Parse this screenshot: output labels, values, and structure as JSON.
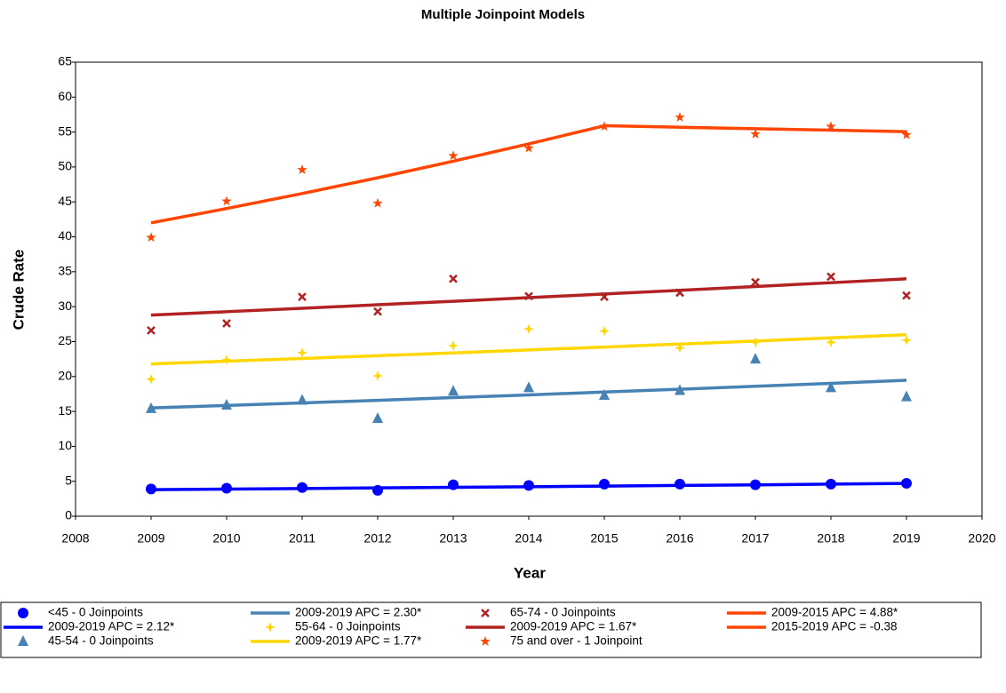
{
  "chart_data": {
    "type": "line",
    "title": "Multiple Joinpoint Models",
    "x_label": "Year",
    "y_label": "Crude Rate",
    "x": [
      2009,
      2010,
      2011,
      2012,
      2013,
      2014,
      2015,
      2016,
      2017,
      2018,
      2019
    ],
    "xlim": [
      2008,
      2020
    ],
    "xticks": [
      2008,
      2009,
      2010,
      2011,
      2012,
      2013,
      2014,
      2015,
      2016,
      2017,
      2018,
      2019,
      2020
    ],
    "ylim": [
      0,
      65
    ],
    "yticks": [
      0,
      5,
      10,
      15,
      20,
      25,
      30,
      35,
      40,
      45,
      50,
      55,
      60,
      65
    ],
    "grid": false,
    "legend": "bottom",
    "series": [
      {
        "name": "<45 - 0 Joinpoints",
        "marker": "circle",
        "color": "#0000ff",
        "values": [
          3.9,
          4.0,
          4.1,
          3.7,
          4.5,
          4.4,
          4.6,
          4.6,
          4.5,
          4.6,
          4.7
        ]
      },
      {
        "name": "2009-2019 APC  = 2.12*",
        "marker": "line",
        "color": "#0000ff",
        "values": [
          3.8,
          3.88,
          3.96,
          4.05,
          4.13,
          4.22,
          4.31,
          4.4,
          4.49,
          4.59,
          4.69
        ]
      },
      {
        "name": "45-54 - 0 Joinpoints",
        "marker": "triangle",
        "color": "#4682b4",
        "values": [
          15.4,
          15.9,
          16.6,
          14.0,
          17.9,
          18.4,
          17.3,
          18.0,
          22.5,
          18.4,
          17.1
        ]
      },
      {
        "name": "2009-2019 APC  = 2.30*",
        "marker": "line",
        "color": "#4682b4",
        "values": [
          15.5,
          15.86,
          16.22,
          16.59,
          16.98,
          17.37,
          17.77,
          18.18,
          18.6,
          19.02,
          19.46
        ]
      },
      {
        "name": "55-64 - 0 Joinpoints",
        "marker": "plus",
        "color": "#ffd700",
        "values": [
          19.6,
          22.4,
          23.4,
          20.1,
          24.4,
          26.8,
          26.5,
          24.1,
          24.9,
          24.9,
          25.2
        ]
      },
      {
        "name": "2009-2019 APC  = 1.77*",
        "marker": "line",
        "color": "#ffd700",
        "values": [
          21.8,
          22.19,
          22.58,
          22.98,
          23.38,
          23.8,
          24.22,
          24.65,
          25.08,
          25.53,
          25.98
        ]
      },
      {
        "name": "65-74 - 0 Joinpoints",
        "marker": "x",
        "color": "#b22222",
        "values": [
          26.6,
          27.6,
          31.4,
          29.3,
          34.0,
          31.5,
          31.4,
          32.0,
          33.5,
          34.3,
          31.6
        ]
      },
      {
        "name": "2009-2019 APC  = 1.67*",
        "marker": "line",
        "color": "#b22222",
        "values": [
          28.8,
          29.28,
          29.77,
          30.27,
          30.77,
          31.29,
          31.81,
          32.34,
          32.88,
          33.43,
          33.99
        ]
      },
      {
        "name": "75 and over - 1 Joinpoint",
        "marker": "star",
        "color": "#ff4500",
        "values": [
          39.9,
          45.1,
          49.6,
          44.8,
          51.6,
          52.7,
          55.8,
          57.1,
          54.7,
          55.8,
          54.6
        ]
      },
      {
        "name": "2009-2015 APC  =  4.88*",
        "marker": "line",
        "color": "#ff4500",
        "values": [
          42.0,
          44.05,
          46.2,
          48.45,
          50.82,
          53.3,
          55.9,
          null,
          null,
          null,
          null
        ]
      },
      {
        "name": "2015-2019 APC  = -0.38",
        "marker": "line",
        "color": "#ff4500",
        "values": [
          null,
          null,
          null,
          null,
          null,
          null,
          55.9,
          55.69,
          55.48,
          55.27,
          55.06
        ]
      }
    ]
  }
}
